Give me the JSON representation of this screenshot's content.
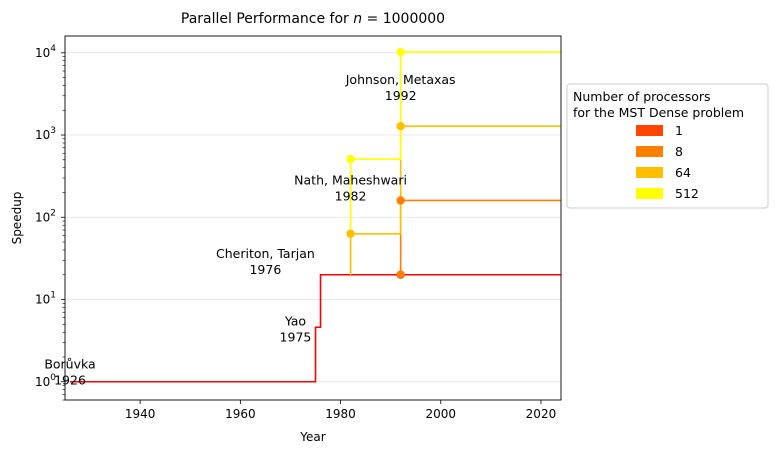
{
  "chart_data": {
    "type": "line",
    "title": "Parallel Performance for n = 1000000",
    "title_parts": {
      "prefix": "Parallel Performance for ",
      "var": "n",
      "suffix": " = 1000000"
    },
    "xlabel": "Year",
    "ylabel": "Speedup",
    "xlim": [
      1925,
      2024
    ],
    "ylim": [
      0.6,
      16000
    ],
    "y_scale": "log",
    "grid": "horizontal",
    "x_ticks": [
      1940,
      1960,
      1980,
      2000,
      2020
    ],
    "y_ticks": [
      {
        "value": 1,
        "base": "10",
        "exp": "0"
      },
      {
        "value": 10,
        "base": "10",
        "exp": "1"
      },
      {
        "value": 100,
        "base": "10",
        "exp": "2"
      },
      {
        "value": 1000,
        "base": "10",
        "exp": "3"
      },
      {
        "value": 10000,
        "base": "10",
        "exp": "4"
      }
    ],
    "legend": {
      "title_lines": [
        "Number of processors",
        "for the MST Dense problem"
      ],
      "placement": "right",
      "entries": [
        "1",
        "8",
        "64",
        "512"
      ]
    },
    "series": [
      {
        "name": "1",
        "color": "#ff0000",
        "legend_color": "#ff4500",
        "points": [
          [
            1926,
            1
          ],
          [
            1975,
            4.6
          ],
          [
            1976,
            20
          ],
          [
            1992,
            20
          ]
        ],
        "markers": [
          [
            1992,
            20
          ]
        ],
        "end_x": 2024
      },
      {
        "name": "8",
        "color": "#ff8000",
        "legend_color": "#ff8000",
        "points": [
          [
            1992,
            20
          ],
          [
            1992,
            160
          ]
        ],
        "markers": [
          [
            1992,
            20
          ],
          [
            1992,
            160
          ]
        ],
        "end_x": 2024
      },
      {
        "name": "64",
        "color": "#ffbf00",
        "legend_color": "#ffbf00",
        "points": [
          [
            1982,
            20
          ],
          [
            1982,
            63
          ],
          [
            1992,
            63
          ],
          [
            1992,
            1280
          ]
        ],
        "markers": [
          [
            1982,
            63
          ],
          [
            1992,
            1280
          ]
        ],
        "end_x": 2024
      },
      {
        "name": "512",
        "color": "#ffff00",
        "legend_color": "#ffff00",
        "points": [
          [
            1982,
            63
          ],
          [
            1982,
            510
          ],
          [
            1992,
            510
          ],
          [
            1992,
            10200
          ]
        ],
        "markers": [
          [
            1982,
            510
          ],
          [
            1992,
            10200
          ]
        ],
        "end_x": 2024
      }
    ],
    "annotations": [
      {
        "lines": [
          "Borůvka",
          "1926"
        ],
        "x": 1926,
        "y": 1.45
      },
      {
        "lines": [
          "Yao",
          "1975"
        ],
        "x": 1971,
        "y": 4.8
      },
      {
        "lines": [
          "Cheriton, Tarjan",
          "1976"
        ],
        "x": 1965,
        "y": 32
      },
      {
        "lines": [
          "Nath, Maheshwari",
          "1982"
        ],
        "x": 1982,
        "y": 250
      },
      {
        "lines": [
          "Johnson, Metaxas",
          "1992"
        ],
        "x": 1992,
        "y": 4200
      }
    ]
  }
}
